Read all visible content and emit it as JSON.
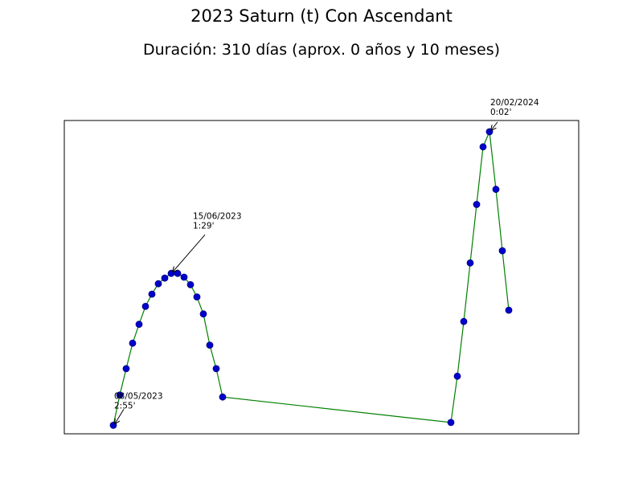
{
  "chart_data": {
    "type": "line",
    "title": "2023 Saturn (t) Con Ascendant",
    "subtitle": "Duración: 310 días (aprox. 0 años y 10 meses)",
    "xlabel": "",
    "ylabel": "",
    "ylim": [
      0,
      3.1
    ],
    "grid": false,
    "line_color": "#008000",
    "marker_face_color": "#0000cc",
    "marker_edge_color": "#000080",
    "series": [
      {
        "x": [
          0,
          2,
          4,
          6,
          8,
          10,
          12,
          14,
          16,
          18,
          20,
          22,
          24,
          26,
          28,
          30,
          32,
          34,
          105,
          107,
          109,
          111,
          113,
          115,
          117,
          119,
          121,
          123
        ],
        "values": [
          0.09,
          0.41,
          0.69,
          0.96,
          1.16,
          1.35,
          1.48,
          1.59,
          1.65,
          1.7,
          1.7,
          1.66,
          1.58,
          1.45,
          1.27,
          0.94,
          0.69,
          0.39,
          0.12,
          0.61,
          1.19,
          1.81,
          2.43,
          3.04,
          3.2,
          2.59,
          1.94,
          1.31
        ]
      }
    ],
    "annotations": [
      {
        "date": "08/05/2023",
        "value": "2:55'",
        "index": 0
      },
      {
        "date": "15/06/2023",
        "value": "1:29'",
        "index": 9
      },
      {
        "date": "20/02/2024",
        "value": "0:02'",
        "index": 24
      }
    ]
  }
}
